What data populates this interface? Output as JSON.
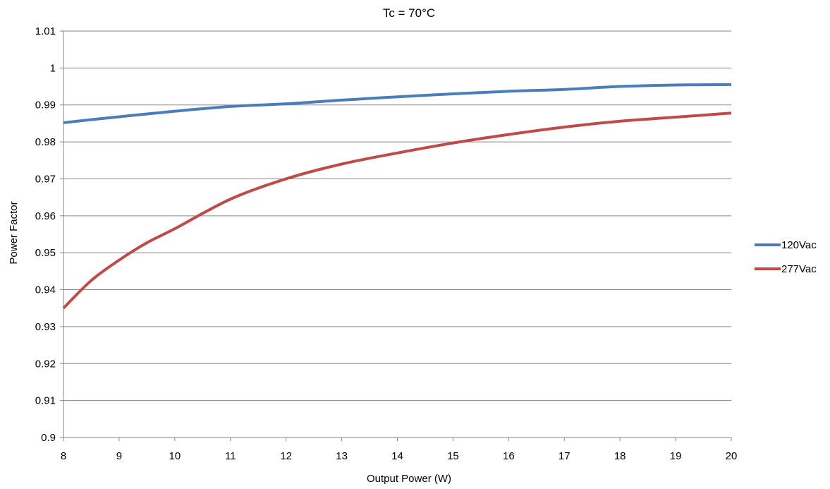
{
  "chart_data": {
    "type": "line",
    "title": "Tc = 70°C",
    "xlabel": "Output Power (W)",
    "ylabel": "Power Factor",
    "xlim": [
      8,
      20
    ],
    "ylim": [
      0.9,
      1.01
    ],
    "x_ticks": [
      "8",
      "9",
      "10",
      "11",
      "12",
      "13",
      "14",
      "15",
      "16",
      "17",
      "18",
      "19",
      "20"
    ],
    "y_ticks": [
      "0.9",
      "0.91",
      "0.92",
      "0.93",
      "0.94",
      "0.95",
      "0.96",
      "0.97",
      "0.98",
      "0.99",
      "1",
      "1.01"
    ],
    "grid": "horizontal",
    "legend_position": "right",
    "series": [
      {
        "name": "120Vac",
        "color": "#4a7ebb",
        "x": [
          8,
          9,
          10,
          11,
          12,
          13,
          14,
          15,
          16,
          17,
          18,
          19,
          20
        ],
        "y": [
          0.9852,
          0.9868,
          0.9883,
          0.9896,
          0.9903,
          0.9913,
          0.9922,
          0.993,
          0.9937,
          0.9942,
          0.995,
          0.9954,
          0.9955
        ]
      },
      {
        "name": "277Vac",
        "color": "#be4b48",
        "x": [
          8,
          8.5,
          9,
          9.5,
          10,
          11,
          12,
          13,
          14,
          15,
          16,
          17,
          18,
          19,
          20
        ],
        "y": [
          0.935,
          0.9425,
          0.948,
          0.9527,
          0.9565,
          0.9645,
          0.97,
          0.974,
          0.977,
          0.9797,
          0.982,
          0.984,
          0.9856,
          0.9867,
          0.9878
        ]
      }
    ]
  }
}
